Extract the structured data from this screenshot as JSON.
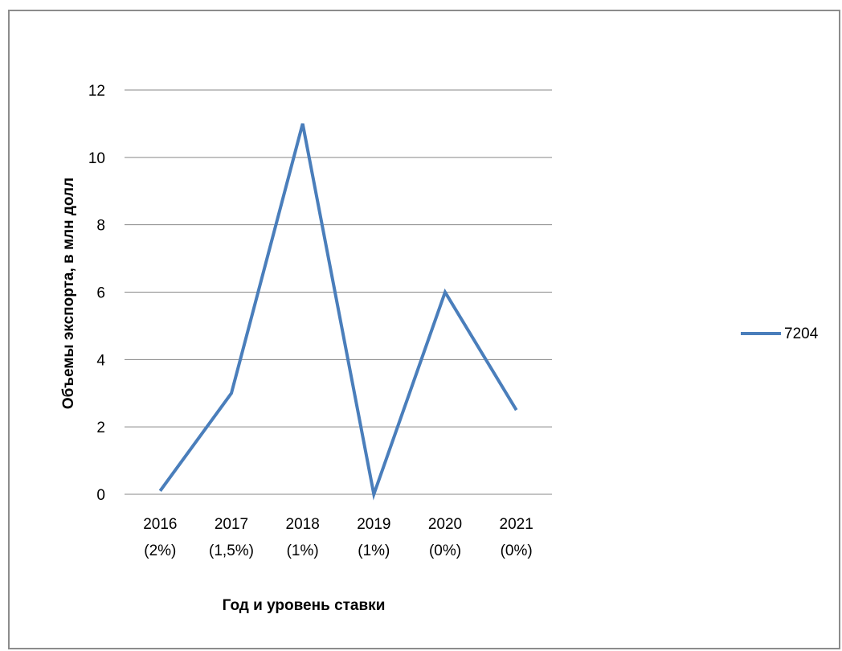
{
  "chart_data": {
    "type": "line",
    "categories": [
      [
        "2016",
        "(2%)"
      ],
      [
        "2017",
        "(1,5%)"
      ],
      [
        "2018",
        "(1%)"
      ],
      [
        "2019",
        "(1%)"
      ],
      [
        "2020",
        "(0%)"
      ],
      [
        "2021",
        "(0%)"
      ]
    ],
    "series": [
      {
        "name": "7204",
        "values": [
          0.1,
          3,
          11,
          0,
          6,
          2.5
        ],
        "color": "#4a7ebb"
      }
    ],
    "xlabel": "Год и уровень ставки",
    "ylabel": "Объемы экспорта, в млн долл",
    "ylim": [
      0,
      12
    ],
    "yticks": [
      "0",
      "2",
      "4",
      "6",
      "8",
      "10",
      "12"
    ],
    "grid": "horizontal",
    "legend_position": "right",
    "gridline_color": "#878787"
  }
}
